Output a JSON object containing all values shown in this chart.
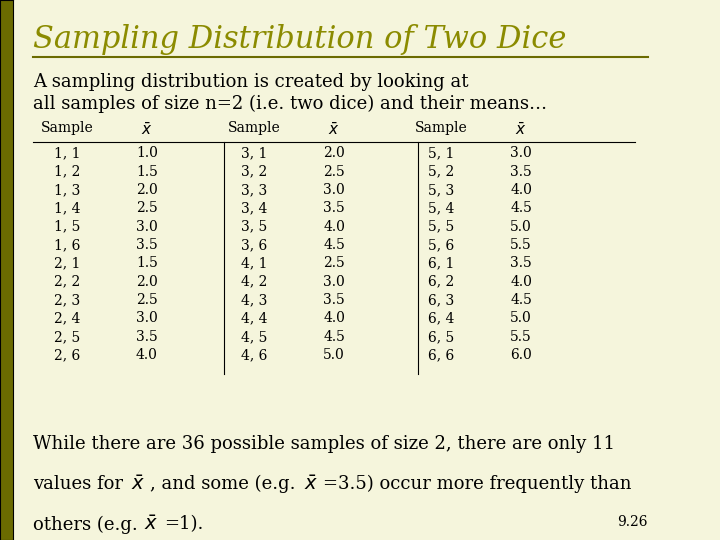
{
  "title": "Sampling Distribution of Two Dice",
  "title_color": "#8B8B00",
  "background_color": "#F5F5DC",
  "subtitle_line1": "A sampling distribution is created by looking at",
  "subtitle_line2": "all samples of size n=2 (i.e. two dice) and their means…",
  "col1_samples": [
    "1, 1",
    "1, 2",
    "1, 3",
    "1, 4",
    "1, 5",
    "1, 6",
    "2, 1",
    "2, 2",
    "2, 3",
    "2, 4",
    "2, 5",
    "2, 6"
  ],
  "col1_means": [
    "1.0",
    "1.5",
    "2.0",
    "2.5",
    "3.0",
    "3.5",
    "1.5",
    "2.0",
    "2.5",
    "3.0",
    "3.5",
    "4.0"
  ],
  "col2_samples": [
    "3, 1",
    "3, 2",
    "3, 3",
    "3, 4",
    "3, 5",
    "3, 6",
    "4, 1",
    "4, 2",
    "4, 3",
    "4, 4",
    "4, 5",
    "4, 6"
  ],
  "col2_means": [
    "2.0",
    "2.5",
    "3.0",
    "3.5",
    "4.0",
    "4.5",
    "2.5",
    "3.0",
    "3.5",
    "4.0",
    "4.5",
    "5.0"
  ],
  "col3_samples": [
    "5, 1",
    "5, 2",
    "5, 3",
    "5, 4",
    "5, 5",
    "5, 6",
    "6, 1",
    "6, 2",
    "6, 3",
    "6, 4",
    "6, 5",
    "6, 6"
  ],
  "col3_means": [
    "3.0",
    "3.5",
    "4.0",
    "4.5",
    "5.0",
    "5.5",
    "3.5",
    "4.0",
    "4.5",
    "5.0",
    "5.5",
    "6.0"
  ],
  "footer_line1": "While there are 36 possible samples of size 2, there are only 11",
  "footer_line2": "values for    , and some (e.g.     =3.5) occur more frequently than",
  "footer_line3": "others (e.g.      =1).",
  "slide_number": "9.26",
  "text_color": "#000000",
  "table_font_size": 10,
  "body_font_size": 13,
  "left_bar_color": "#6B6B00"
}
